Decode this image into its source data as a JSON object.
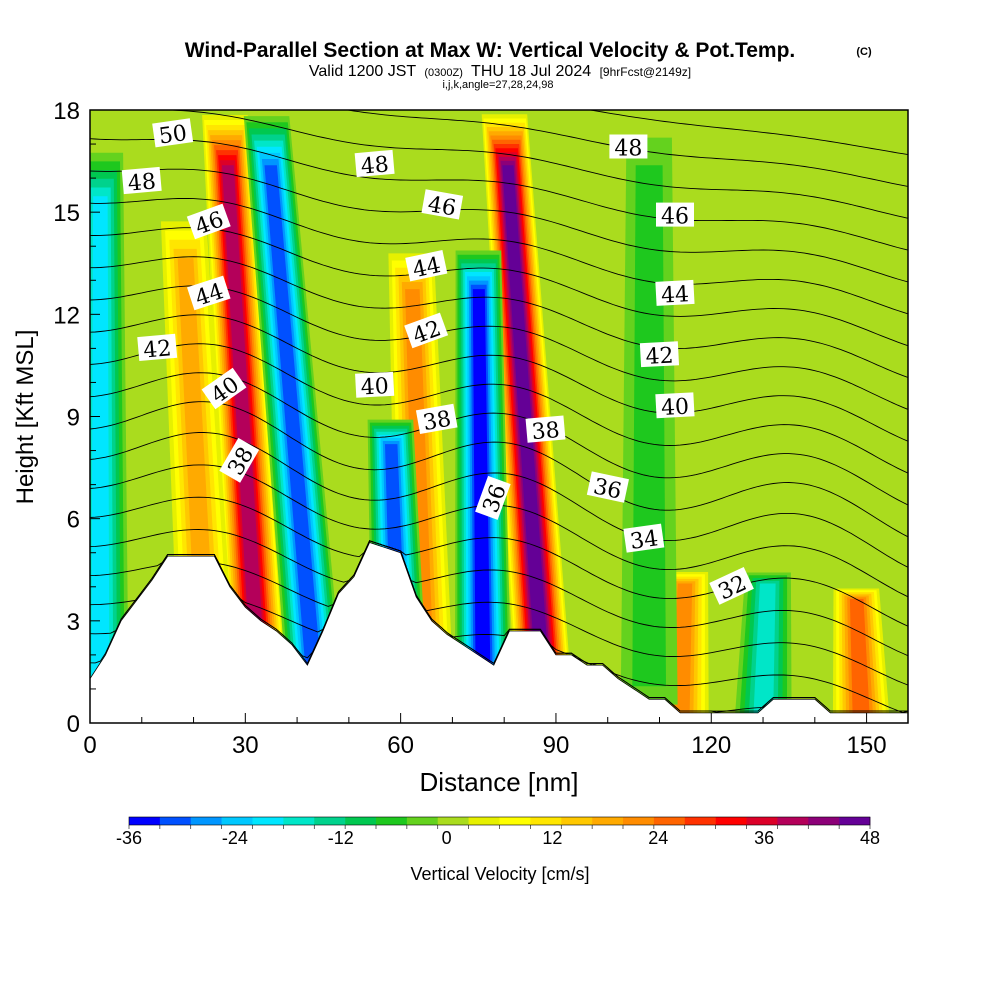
{
  "chart_data": {
    "type": "heatmap",
    "title": "Wind-Parallel Section at Max W: Vertical Velocity & Pot.Temp.",
    "title_mark": "(C)",
    "subtitle_valid": "Valid 1200 JST",
    "subtitle_utc": "(0300Z)",
    "subtitle_date": "THU 18 Jul 2024",
    "subtitle_fcst": "[9hrFcst@2149z]",
    "subtitle_indices": "i,j,k,angle=27,28,24,98",
    "xlabel": "Distance [nm]",
    "ylabel": "Height [Kft MSL]",
    "xlim": [
      0,
      158
    ],
    "ylim": [
      0,
      18
    ],
    "x_ticks": [
      "0",
      "30",
      "60",
      "90",
      "120",
      "150"
    ],
    "y_ticks": [
      "0",
      "3",
      "6",
      "9",
      "12",
      "15",
      "18"
    ],
    "colorbar": {
      "label": "Vertical Velocity [cm/s]",
      "ticks": [
        "-36",
        "-24",
        "-12",
        "0",
        "12",
        "24",
        "36",
        "48"
      ],
      "range": [
        -36,
        48
      ],
      "colors": [
        "#0000ff",
        "#0050ff",
        "#0096ff",
        "#00c8ff",
        "#00e6ff",
        "#00e6c8",
        "#00d28c",
        "#00c850",
        "#1ec81e",
        "#64d21e",
        "#aadc1e",
        "#e6f000",
        "#ffff00",
        "#ffe600",
        "#ffc800",
        "#ffaa00",
        "#ff8c00",
        "#ff6400",
        "#ff3200",
        "#ff0000",
        "#dc0028",
        "#b4005a",
        "#8c0078",
        "#640096"
      ]
    },
    "velocity_bands": [
      {
        "x_base": 33,
        "x_top": 26,
        "z_top": 18,
        "w": 38
      },
      {
        "x_base": 88,
        "x_top": 80,
        "z_top": 18,
        "w": 46
      },
      {
        "x_base": 65,
        "x_top": 62,
        "z_top": 14,
        "w": 22
      },
      {
        "x_base": 23,
        "x_top": 18,
        "z_top": 15,
        "w": 18
      },
      {
        "x_base": 44,
        "x_top": 34,
        "z_top": 18,
        "w": -30
      },
      {
        "x_base": 76,
        "x_top": 75,
        "z_top": 14,
        "w": -36
      },
      {
        "x_base": 60,
        "x_top": 58,
        "z_top": 9,
        "w": -30
      },
      {
        "x_base": 2,
        "x_top": 2,
        "z_top": 17,
        "w": -22
      },
      {
        "x_base": 130,
        "x_top": 131,
        "z_top": 4.5,
        "w": -18
      },
      {
        "x_base": 114,
        "x_top": 115,
        "z_top": 4.5,
        "w": 22
      },
      {
        "x_base": 149,
        "x_top": 148,
        "z_top": 4,
        "w": 26
      },
      {
        "x_base": 108,
        "x_top": 108,
        "z_top": 18,
        "w": -8
      }
    ],
    "terrain": [
      {
        "x": 0,
        "z": 1.3
      },
      {
        "x": 3,
        "z": 2.0
      },
      {
        "x": 6,
        "z": 3.0
      },
      {
        "x": 9,
        "z": 3.6
      },
      {
        "x": 12,
        "z": 4.2
      },
      {
        "x": 15,
        "z": 4.9
      },
      {
        "x": 24,
        "z": 4.9
      },
      {
        "x": 27,
        "z": 4.0
      },
      {
        "x": 30,
        "z": 3.4
      },
      {
        "x": 33,
        "z": 3.0
      },
      {
        "x": 36,
        "z": 2.7
      },
      {
        "x": 39,
        "z": 2.3
      },
      {
        "x": 42,
        "z": 1.7
      },
      {
        "x": 45,
        "z": 2.7
      },
      {
        "x": 48,
        "z": 3.8
      },
      {
        "x": 51,
        "z": 4.3
      },
      {
        "x": 54,
        "z": 5.3
      },
      {
        "x": 60,
        "z": 5.0
      },
      {
        "x": 63,
        "z": 3.7
      },
      {
        "x": 66,
        "z": 3.0
      },
      {
        "x": 69,
        "z": 2.6
      },
      {
        "x": 72,
        "z": 2.3
      },
      {
        "x": 75,
        "z": 2.0
      },
      {
        "x": 78,
        "z": 1.7
      },
      {
        "x": 81,
        "z": 2.7
      },
      {
        "x": 87,
        "z": 2.7
      },
      {
        "x": 90,
        "z": 2.0
      },
      {
        "x": 93,
        "z": 2.0
      },
      {
        "x": 96,
        "z": 1.7
      },
      {
        "x": 99,
        "z": 1.7
      },
      {
        "x": 102,
        "z": 1.3
      },
      {
        "x": 105,
        "z": 1.0
      },
      {
        "x": 108,
        "z": 0.7
      },
      {
        "x": 111,
        "z": 0.7
      },
      {
        "x": 114,
        "z": 0.3
      },
      {
        "x": 117,
        "z": 0.3
      },
      {
        "x": 126,
        "z": 0.3
      },
      {
        "x": 129,
        "z": 0.3
      },
      {
        "x": 132,
        "z": 0.7
      },
      {
        "x": 140,
        "z": 0.7
      },
      {
        "x": 143,
        "z": 0.3
      },
      {
        "x": 150,
        "z": 0.3
      },
      {
        "x": 152,
        "z": 0.3
      },
      {
        "x": 158,
        "z": 0.3
      }
    ],
    "contour_levels": [
      31,
      32,
      33,
      34,
      35,
      36,
      37,
      38,
      39,
      40,
      41,
      42,
      43,
      44,
      45,
      46,
      47,
      48,
      49,
      50,
      51
    ],
    "contour_labels": [
      {
        "text": "50",
        "x": 16,
        "z": 17.3,
        "angle": -8
      },
      {
        "text": "48",
        "x": 10,
        "z": 15.9,
        "angle": -5
      },
      {
        "text": "46",
        "x": 23,
        "z": 14.7,
        "angle": -20
      },
      {
        "text": "44",
        "x": 23,
        "z": 12.6,
        "angle": -18
      },
      {
        "text": "42",
        "x": 13,
        "z": 11.0,
        "angle": -5
      },
      {
        "text": "40",
        "x": 26,
        "z": 9.8,
        "angle": -35
      },
      {
        "text": "38",
        "x": 29,
        "z": 7.7,
        "angle": -60
      },
      {
        "text": "48",
        "x": 55,
        "z": 16.4,
        "angle": -5
      },
      {
        "text": "46",
        "x": 68,
        "z": 15.2,
        "angle": 10
      },
      {
        "text": "44",
        "x": 65,
        "z": 13.4,
        "angle": -12
      },
      {
        "text": "42",
        "x": 65,
        "z": 11.5,
        "angle": -20
      },
      {
        "text": "40",
        "x": 55,
        "z": 9.9,
        "angle": -3
      },
      {
        "text": "38",
        "x": 67,
        "z": 8.9,
        "angle": -10
      },
      {
        "text": "36",
        "x": 78,
        "z": 6.6,
        "angle": -70
      },
      {
        "text": "38",
        "x": 88,
        "z": 8.6,
        "angle": -5
      },
      {
        "text": "36",
        "x": 100,
        "z": 6.9,
        "angle": 12
      },
      {
        "text": "34",
        "x": 107,
        "z": 5.4,
        "angle": -8
      },
      {
        "text": "32",
        "x": 124,
        "z": 4.0,
        "angle": -25
      },
      {
        "text": "48",
        "x": 104,
        "z": 16.9,
        "angle": 0
      },
      {
        "text": "46",
        "x": 113,
        "z": 14.9,
        "angle": 0
      },
      {
        "text": "44",
        "x": 113,
        "z": 12.6,
        "angle": -3
      },
      {
        "text": "42",
        "x": 110,
        "z": 10.8,
        "angle": -3
      },
      {
        "text": "40",
        "x": 113,
        "z": 9.3,
        "angle": -3
      }
    ]
  }
}
